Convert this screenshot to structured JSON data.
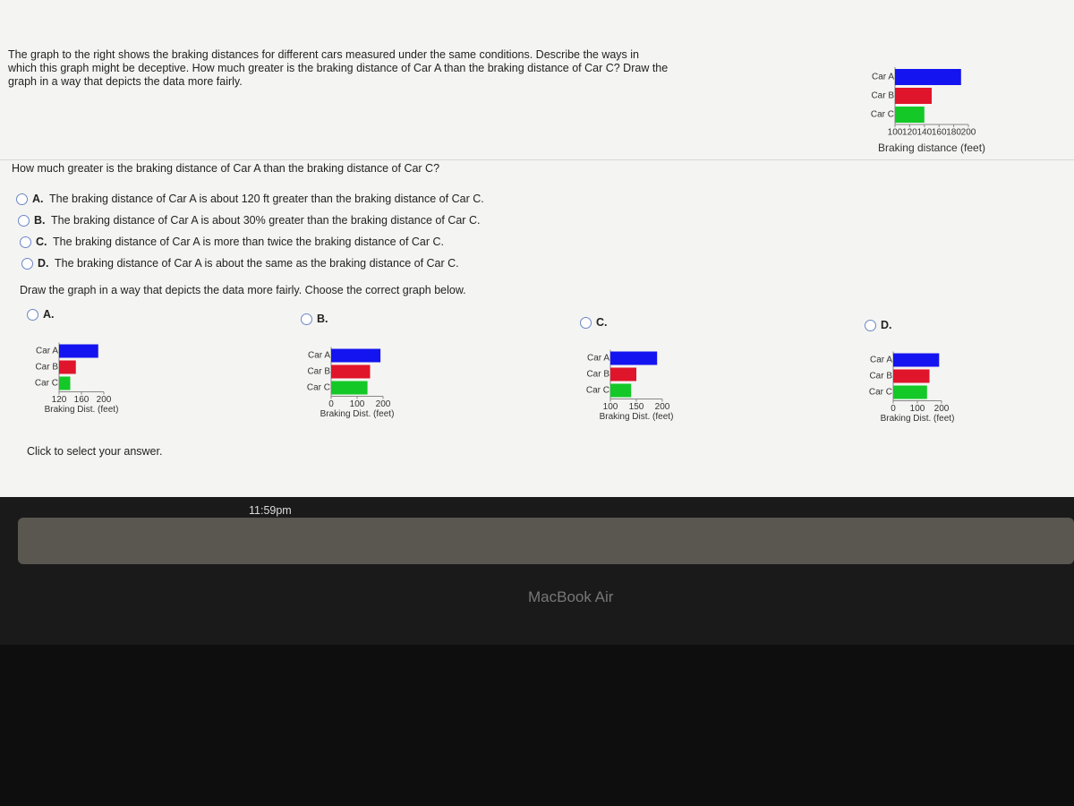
{
  "question": {
    "text": "The graph to the right shows the braking distances for different cars measured under the same conditions. Describe the ways in which this graph might be deceptive. How much greater is the braking distance of Car A than the braking distance of Car C? Draw the graph in a way that depicts the data more fairly.",
    "sub_question": "How much greater is the braking distance of Car A than the braking distance of Car C?",
    "choices": [
      {
        "letter": "A.",
        "text": "The braking distance of Car A is about 120 ft greater than the braking distance of Car C."
      },
      {
        "letter": "B.",
        "text": "The braking distance of Car A is about 30% greater than the braking distance of Car C."
      },
      {
        "letter": "C.",
        "text": "The braking distance of Car A is more than twice the braking distance of Car C."
      },
      {
        "letter": "D.",
        "text": "The braking distance of Car A is about the same as the braking distance of Car C."
      }
    ],
    "graph_prompt": "Draw the graph in a way that depicts the data more fairly. Choose the correct graph below.",
    "graph_choices": [
      "A.",
      "B.",
      "C.",
      "D."
    ],
    "click_text": "Click to select your answer."
  },
  "chart_data": [
    {
      "type": "bar",
      "categories": [
        "Car A",
        "Car B",
        "Car C"
      ],
      "values": [
        190,
        150,
        140
      ],
      "colors": [
        "#1414f0",
        "#e0142a",
        "#14c828"
      ],
      "xlabel": "Braking distance (feet)",
      "xlim": [
        100,
        200
      ],
      "xticks": [
        100,
        120,
        140,
        160,
        180,
        200
      ]
    },
    {
      "type": "bar",
      "categories": [
        "Car A",
        "Car B",
        "Car C"
      ],
      "values": [
        190,
        150,
        140
      ],
      "colors": [
        "#1414f0",
        "#e0142a",
        "#14c828"
      ],
      "xlabel": "Braking Dist. (feet)",
      "xlim": [
        120,
        200
      ],
      "xticks": [
        120,
        160,
        200
      ]
    },
    {
      "type": "bar",
      "categories": [
        "Car A",
        "Car B",
        "Car C"
      ],
      "values": [
        190,
        150,
        140
      ],
      "colors": [
        "#1414f0",
        "#e0142a",
        "#14c828"
      ],
      "xlabel": "Braking Dist. (feet)",
      "xlim": [
        0,
        200
      ],
      "xticks": [
        0,
        100,
        200
      ]
    },
    {
      "type": "bar",
      "categories": [
        "Car A",
        "Car B",
        "Car C"
      ],
      "values": [
        190,
        150,
        140
      ],
      "colors": [
        "#1414f0",
        "#e0142a",
        "#14c828"
      ],
      "xlabel": "Braking Dist. (feet)",
      "xlim": [
        100,
        200
      ],
      "xticks": [
        100,
        150,
        200
      ]
    },
    {
      "type": "bar",
      "categories": [
        "Car A",
        "Car B",
        "Car C"
      ],
      "values": [
        190,
        150,
        140
      ],
      "colors": [
        "#1414f0",
        "#e0142a",
        "#14c828"
      ],
      "xlabel": "Braking Dist. (feet)",
      "xlim": [
        0,
        200
      ],
      "xticks": [
        0,
        100,
        200
      ]
    }
  ],
  "device": {
    "time": "11:59pm",
    "laptop": "MacBook Air"
  }
}
